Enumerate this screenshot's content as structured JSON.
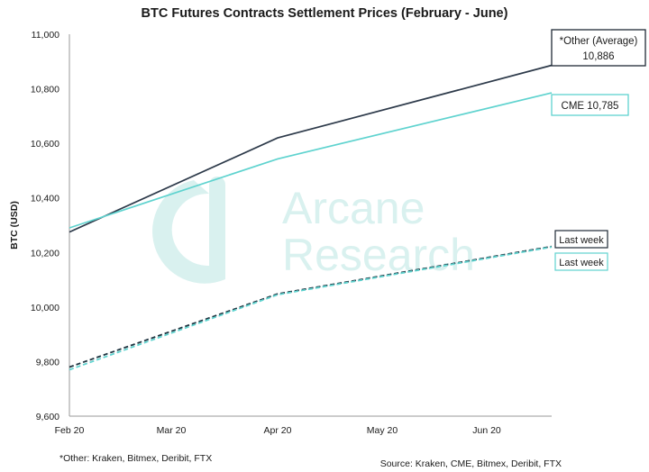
{
  "chart_data": {
    "type": "line",
    "title": "BTC Futures Contracts Settlement Prices (February - June)",
    "ylabel": "BTC (USD)",
    "xlabel": "",
    "x_ticks": [
      "Feb 20",
      "Mar 20",
      "Apr 20",
      "May 20",
      "Jun 20"
    ],
    "y_ticks": [
      "9,600",
      "9,800",
      "10,000",
      "10,200",
      "10,400",
      "10,600",
      "10,800",
      "11,000"
    ],
    "ylim": [
      9600,
      11000
    ],
    "x_points": [
      "Feb 20",
      "Apr 20",
      "Jun 20"
    ],
    "series": [
      {
        "label": "*Other (Average)",
        "value_label": "10,886",
        "style": "solid",
        "color": "#2d3a4a",
        "values": [
          10275,
          10620,
          10886
        ]
      },
      {
        "label": "CME",
        "value_label": "10,785",
        "style": "solid",
        "color": "#5fd3cf",
        "values": [
          10290,
          10543,
          10785
        ]
      },
      {
        "label": "Last week",
        "style": "dashed",
        "color": "#1f3440",
        "values": [
          9780,
          10048,
          10222
        ]
      },
      {
        "label": "Last week",
        "style": "dashed",
        "color": "#5fd3cf",
        "values": [
          9770,
          10045,
          10220
        ]
      }
    ],
    "watermark": [
      "Arcane",
      "Research"
    ],
    "footnote": "*Other: Kraken, Bitmex, Deribit, FTX",
    "source": "Source: Kraken, CME, Bitmex, Deribit, FTX",
    "grid": false,
    "legend": "callouts"
  }
}
